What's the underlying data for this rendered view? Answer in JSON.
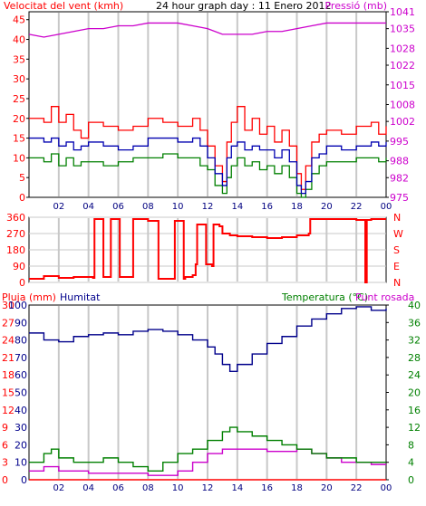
{
  "colors": {
    "wind_speed": "#ff0000",
    "wind_avg": "#0000b0",
    "wind_min": "#008000",
    "pressure": "#cc00cc",
    "direction": "#ff0000",
    "rain": "#ff0000",
    "humidity": "#00008b",
    "temperature": "#008000",
    "dew_point": "#cc00cc",
    "grid": "#c8c8c8",
    "axis": "#000000"
  },
  "chart_data": [
    {
      "type": "line",
      "title": "24 hour graph day : 11 Enero 2012",
      "ylabel": "Velocitat del vent (kmh)",
      "y2label": "Pressió (mb)",
      "ylim": [
        0,
        47
      ],
      "y2lim": [
        975,
        1041
      ],
      "yticks": [
        0,
        5,
        10,
        15,
        20,
        25,
        30,
        35,
        40,
        45
      ],
      "y2ticks": [
        975,
        982,
        988,
        995,
        1002,
        1008,
        1015,
        1022,
        1028,
        1035,
        1041
      ],
      "xlim": [
        0,
        24
      ],
      "xticks": [
        "02",
        "04",
        "06",
        "08",
        "10",
        "12",
        "14",
        "16",
        "18",
        "20",
        "22",
        "00"
      ],
      "grid": true,
      "series": [
        {
          "key": "gust",
          "axis": "y",
          "x": [
            0,
            1,
            1.5,
            2,
            2.5,
            3,
            3.5,
            4,
            5,
            6,
            7,
            8,
            9,
            10,
            11,
            11.5,
            12,
            12.5,
            13,
            13.3,
            13.6,
            14,
            14.5,
            15,
            15.5,
            16,
            16.5,
            17,
            17.5,
            18,
            18.3,
            18.6,
            19,
            19.5,
            20,
            21,
            22,
            23,
            23.5,
            24
          ],
          "values": [
            20,
            19,
            23,
            19,
            21,
            17,
            15,
            19,
            18,
            17,
            18,
            20,
            19,
            18,
            20,
            17,
            13,
            8,
            4,
            14,
            19,
            23,
            17,
            20,
            16,
            18,
            14,
            17,
            13,
            6,
            2,
            8,
            14,
            16,
            17,
            16,
            18,
            19,
            16,
            18
          ]
        },
        {
          "key": "avg",
          "axis": "y",
          "x": [
            0,
            1,
            1.5,
            2,
            2.5,
            3,
            3.5,
            4,
            5,
            6,
            7,
            8,
            9,
            10,
            11,
            11.5,
            12,
            12.5,
            13,
            13.3,
            13.6,
            14,
            14.5,
            15,
            15.5,
            16,
            16.5,
            17,
            17.5,
            18,
            18.3,
            18.6,
            19,
            19.5,
            20,
            21,
            22,
            23,
            23.5,
            24
          ],
          "values": [
            15,
            14,
            15,
            13,
            14,
            12,
            13,
            14,
            13,
            12,
            13,
            15,
            15,
            14,
            15,
            13,
            10,
            6,
            3,
            10,
            13,
            14,
            12,
            13,
            12,
            12,
            10,
            12,
            9,
            3,
            1,
            4,
            10,
            11,
            13,
            12,
            13,
            14,
            13,
            14
          ]
        },
        {
          "key": "min",
          "axis": "y",
          "x": [
            0,
            1,
            1.5,
            2,
            2.5,
            3,
            3.5,
            4,
            5,
            6,
            7,
            8,
            9,
            10,
            11,
            11.5,
            12,
            12.5,
            13,
            13.3,
            13.6,
            14,
            14.5,
            15,
            15.5,
            16,
            16.5,
            17,
            17.5,
            18,
            18.3,
            18.6,
            19,
            19.5,
            20,
            21,
            22,
            23,
            23.5,
            24
          ],
          "values": [
            10,
            9,
            11,
            8,
            10,
            8,
            9,
            9,
            8,
            9,
            10,
            10,
            11,
            10,
            10,
            8,
            7,
            3,
            1,
            5,
            8,
            10,
            8,
            9,
            7,
            8,
            6,
            8,
            5,
            1,
            0,
            2,
            6,
            8,
            9,
            9,
            10,
            10,
            9,
            10
          ]
        },
        {
          "key": "pressure",
          "axis": "y2",
          "x": [
            0,
            1,
            2,
            3,
            4,
            5,
            6,
            7,
            8,
            9,
            10,
            11,
            12,
            13,
            14,
            15,
            16,
            17,
            18,
            19,
            20,
            21,
            22,
            23,
            24
          ],
          "values": [
            1033,
            1032,
            1033,
            1034,
            1035,
            1035,
            1036,
            1036,
            1037,
            1037,
            1037,
            1036,
            1035,
            1033,
            1033,
            1033,
            1034,
            1034,
            1035,
            1036,
            1037,
            1037,
            1037,
            1037,
            1037
          ]
        }
      ]
    },
    {
      "type": "line",
      "ylim": [
        0,
        360
      ],
      "yticks": [
        0,
        90,
        180,
        270,
        360
      ],
      "y2ticks": [
        "N",
        "E",
        "S",
        "W",
        "N"
      ],
      "xlim": [
        0,
        24
      ],
      "grid": true,
      "series": [
        {
          "key": "direction",
          "x": [
            0,
            1,
            2,
            3,
            4,
            4.3,
            4.4,
            4.9,
            5,
            5.4,
            5.5,
            6,
            6.1,
            6.8,
            7,
            7.5,
            8,
            8.6,
            8.7,
            9,
            9.8,
            10,
            10.4,
            10.5,
            11,
            11.2,
            11.3,
            11.8,
            11.9,
            12.3,
            12.4,
            12.8,
            13,
            13.5,
            14,
            15,
            16,
            17,
            18,
            18.8,
            18.9,
            19,
            20,
            21,
            22,
            22.5,
            22.6,
            22.7,
            23,
            24
          ],
          "values": [
            20,
            35,
            25,
            30,
            30,
            25,
            350,
            350,
            30,
            30,
            350,
            350,
            30,
            30,
            350,
            350,
            340,
            340,
            20,
            20,
            340,
            340,
            20,
            30,
            40,
            100,
            320,
            320,
            100,
            90,
            320,
            310,
            270,
            260,
            255,
            250,
            245,
            250,
            260,
            270,
            350,
            350,
            350,
            350,
            345,
            345,
            0,
            345,
            350,
            350
          ]
        }
      ]
    },
    {
      "type": "line",
      "ylabel": "Pluja (mm)",
      "y2label": "Humitat",
      "y3label": "Temperatura (°C)",
      "y4label": "Punt rosada",
      "ylim": [
        0,
        40
      ],
      "y_rain_ticks": [
        0,
        3,
        6,
        9,
        12,
        15,
        18,
        21,
        24,
        27,
        30
      ],
      "y_hum_ticks": [
        0,
        10,
        20,
        30,
        40,
        50,
        60,
        70,
        80,
        90,
        100
      ],
      "y2ticks": [
        0,
        4,
        8,
        12,
        16,
        20,
        24,
        28,
        32,
        36,
        40
      ],
      "xlim": [
        0,
        24
      ],
      "xticks": [
        "02",
        "04",
        "06",
        "08",
        "10",
        "12",
        "14",
        "16",
        "18",
        "20",
        "22",
        "00"
      ],
      "grid": true,
      "series": [
        {
          "key": "humidity",
          "scale": "hum",
          "x": [
            0,
            1,
            2,
            3,
            4,
            5,
            6,
            7,
            8,
            9,
            10,
            11,
            12,
            12.5,
            13,
            13.5,
            14,
            15,
            16,
            17,
            18,
            19,
            20,
            21,
            22,
            23,
            24
          ],
          "values": [
            84,
            80,
            79,
            82,
            83,
            84,
            83,
            85,
            86,
            85,
            83,
            80,
            76,
            72,
            66,
            62,
            66,
            72,
            78,
            82,
            88,
            92,
            95,
            98,
            99,
            97,
            98
          ]
        },
        {
          "key": "rain",
          "scale": "rain",
          "x": [
            0,
            24
          ],
          "values": [
            0,
            0
          ]
        },
        {
          "key": "temperature",
          "scale": "temp",
          "x": [
            0,
            1,
            1.5,
            2,
            3,
            4,
            5,
            6,
            7,
            8,
            9,
            10,
            11,
            12,
            13,
            13.5,
            14,
            15,
            16,
            17,
            18,
            19,
            20,
            21,
            22,
            23,
            24
          ],
          "values": [
            4,
            6,
            7,
            5,
            4,
            4,
            5,
            4,
            3,
            2,
            4,
            6,
            7,
            9,
            11,
            12,
            11,
            10,
            9,
            8,
            7,
            6,
            5,
            5,
            4,
            4,
            4
          ]
        },
        {
          "key": "dew_point",
          "scale": "temp",
          "x": [
            0,
            1,
            2,
            3,
            4,
            5,
            6,
            7,
            8,
            9,
            10,
            11,
            12,
            13,
            14,
            15,
            16,
            17,
            18,
            19,
            20,
            21,
            22,
            23,
            24
          ],
          "values": [
            2,
            3,
            2,
            2,
            1.5,
            1.5,
            1.5,
            1.5,
            1,
            1,
            2,
            4,
            6,
            7,
            7,
            7,
            6.5,
            6.5,
            7,
            6,
            5,
            4,
            4,
            3.5,
            3.5
          ]
        }
      ]
    }
  ]
}
